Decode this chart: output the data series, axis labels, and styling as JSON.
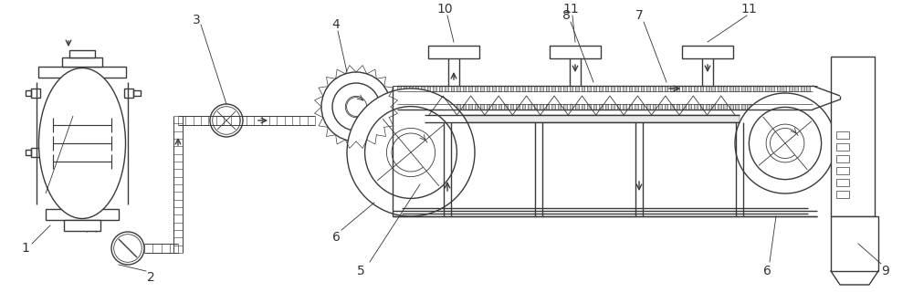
{
  "bg_color": "#ffffff",
  "line_color": "#3a3a3a",
  "lw": 1.0,
  "tlw": 0.6,
  "fig_width": 10.0,
  "fig_height": 3.32,
  "font_size": 10
}
